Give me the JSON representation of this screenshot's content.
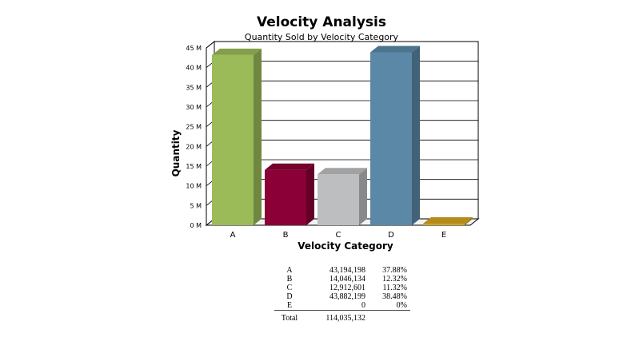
{
  "chart_data": {
    "type": "bar",
    "title": "Velocity Analysis",
    "subtitle": "Quantity Sold by Velocity Category",
    "xlabel": "Velocity Category",
    "ylabel": "Quantity",
    "categories": [
      "A",
      "B",
      "C",
      "D",
      "E"
    ],
    "values": [
      43194198,
      14046134,
      12912601,
      43882199,
      0
    ],
    "colors": [
      "#9bbb59",
      "#8b0036",
      "#bcbec0",
      "#5b88a6",
      "#d4a520"
    ],
    "ylim": [
      0,
      45000000
    ],
    "yticks": [
      "0 M",
      "5 M",
      "10 M",
      "15 M",
      "20 M",
      "25 M",
      "30 M",
      "35 M",
      "40 M",
      "45 M"
    ],
    "grid": true,
    "legend": "none"
  },
  "summary": {
    "rows": [
      {
        "cat": "A",
        "value": "43,194,198",
        "pct": "37.88%"
      },
      {
        "cat": "B",
        "value": "14,046,134",
        "pct": "12.32%"
      },
      {
        "cat": "C",
        "value": "12,912,601",
        "pct": "11.32%"
      },
      {
        "cat": "D",
        "value": "43,882,199",
        "pct": "38.48%"
      },
      {
        "cat": "E",
        "value": "0",
        "pct": "0%"
      }
    ],
    "total_label": "Total",
    "total_value": "114,035,132"
  }
}
